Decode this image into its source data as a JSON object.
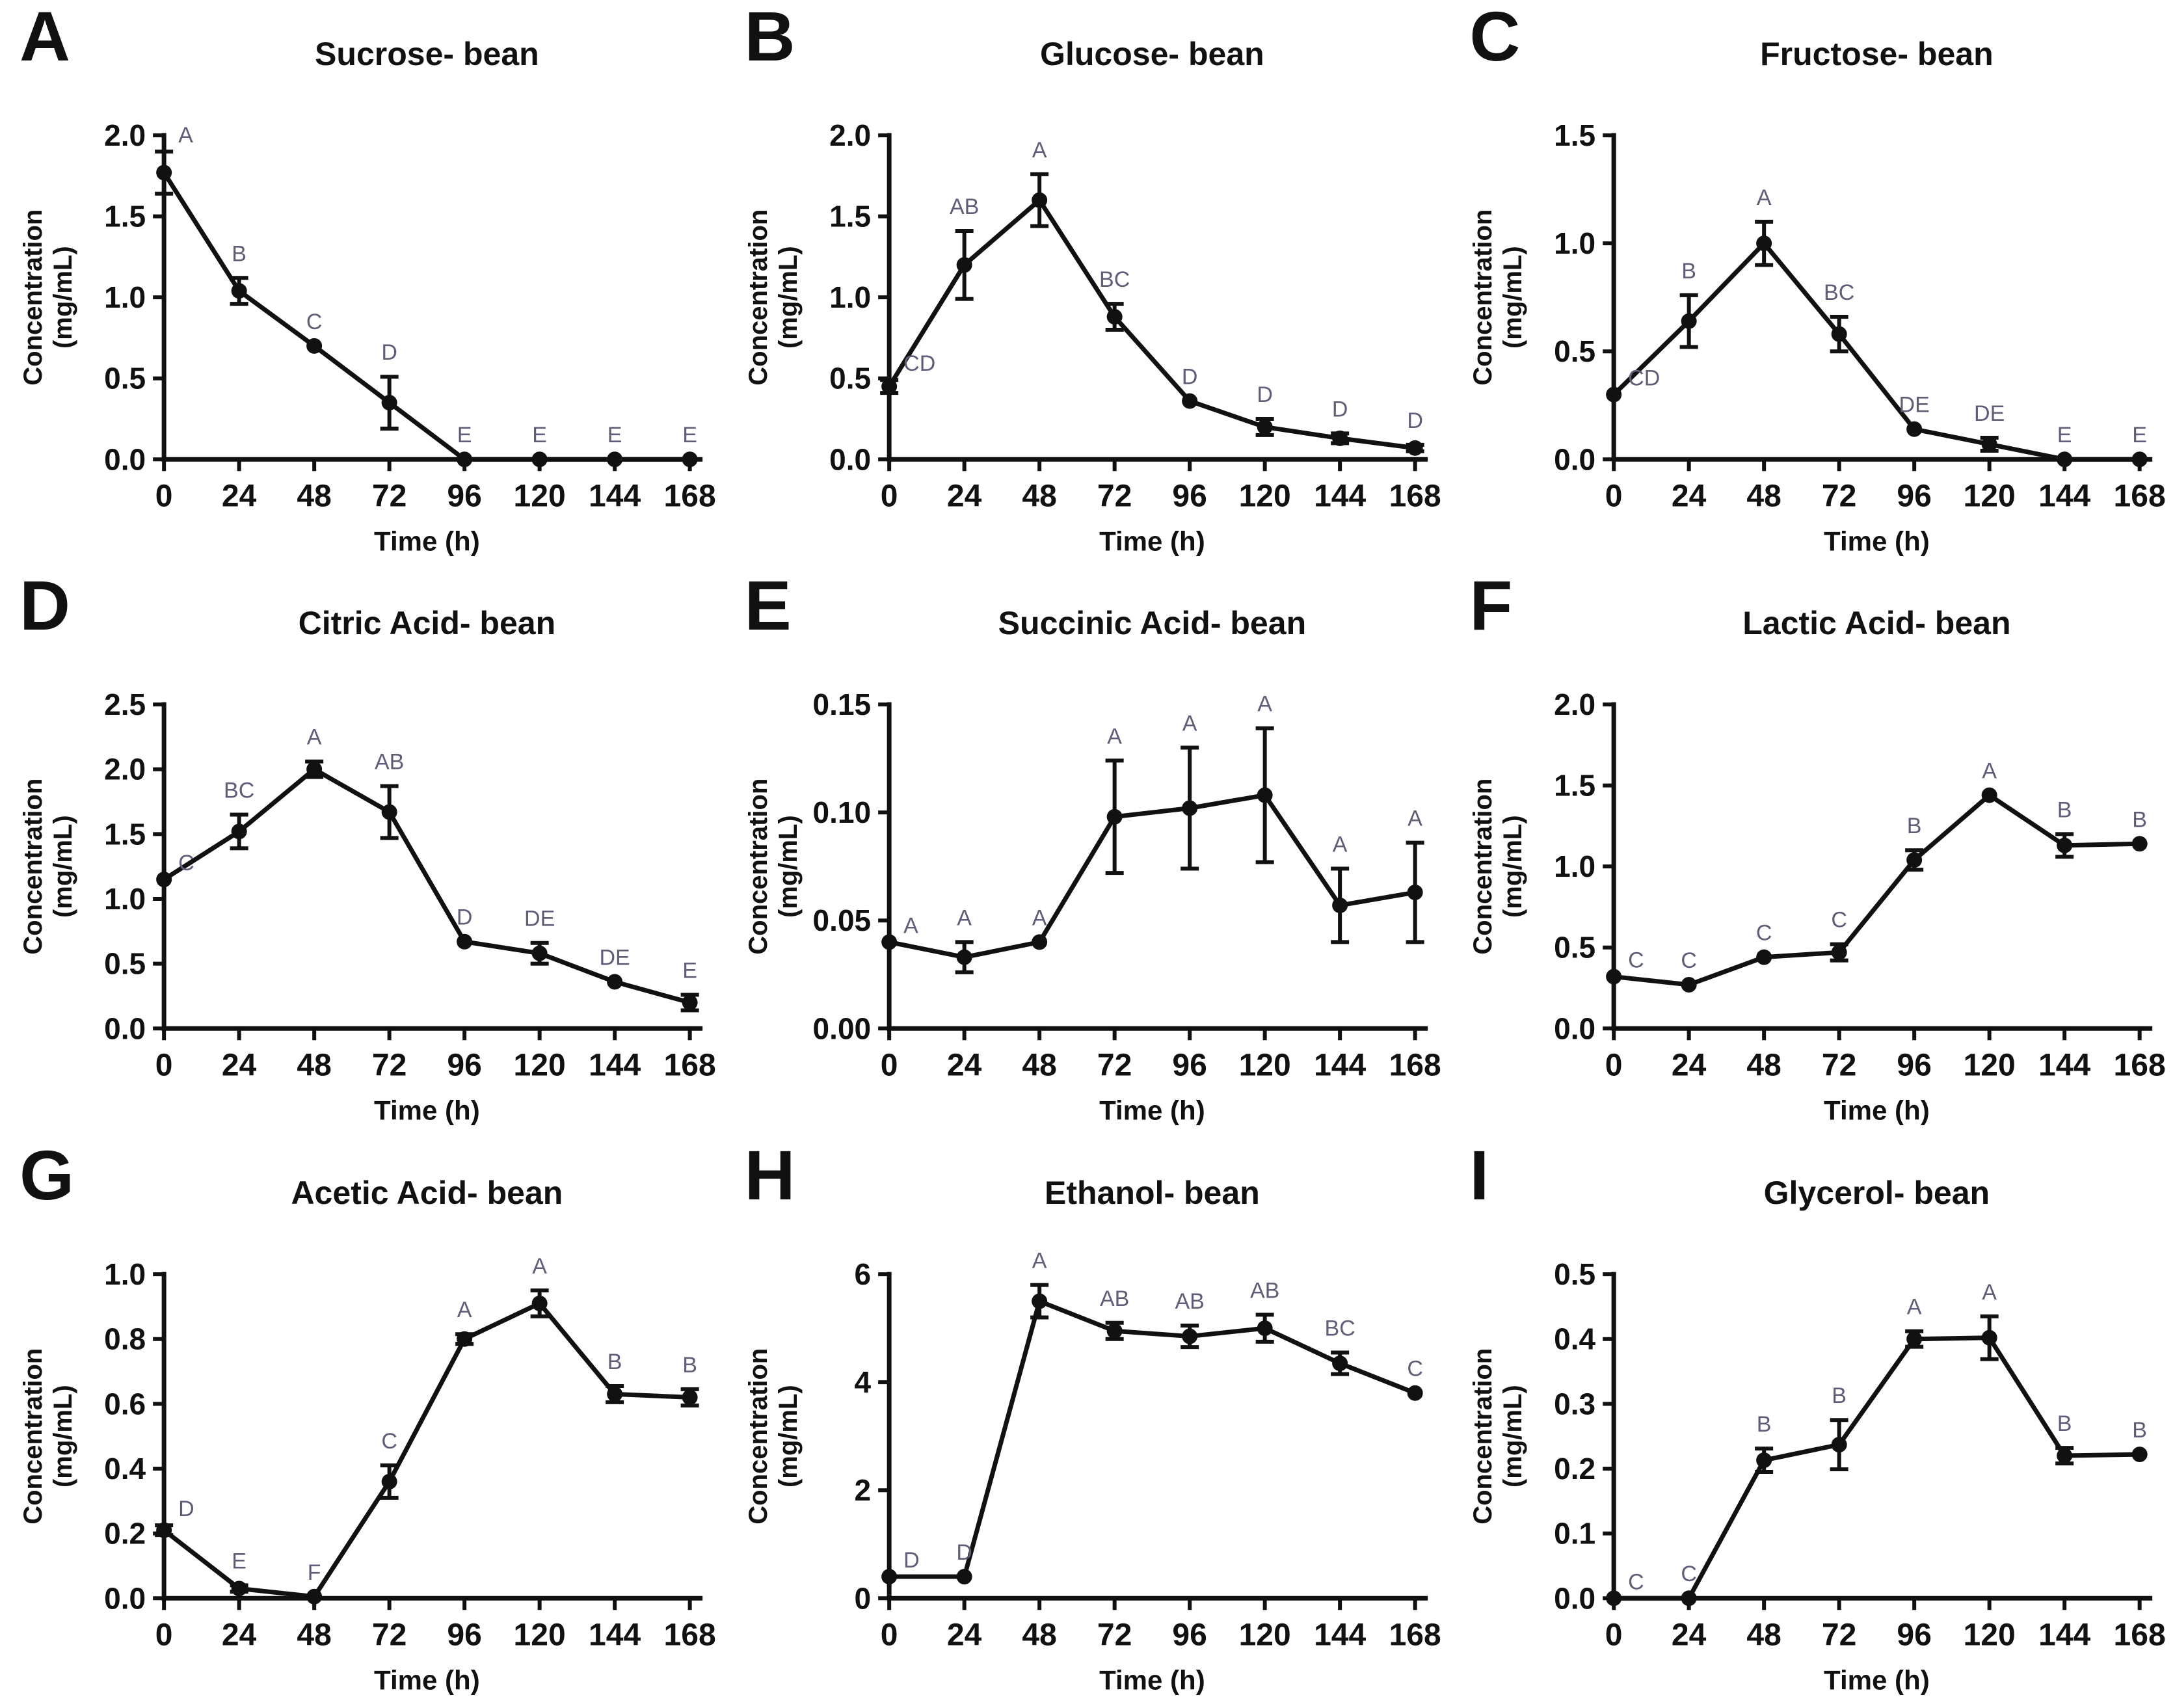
{
  "figure": {
    "background": "#ffffff",
    "ink_color": "#111111",
    "sig_letter_color": "#5e5e78",
    "xlabel": "Time (h)",
    "ylabel_line1": "Concentration",
    "ylabel_line2": "(mg/mL)",
    "x_ticks": [
      0,
      24,
      48,
      72,
      96,
      120,
      144,
      168
    ]
  },
  "chart_data": [
    {
      "type": "line",
      "panel": "A",
      "title": "Sucrose- bean",
      "xlabel": "Time (h)",
      "ylabel": "Concentration (mg/mL)",
      "x": [
        0,
        24,
        48,
        72,
        96,
        120,
        144,
        168
      ],
      "values": [
        1.77,
        1.04,
        0.7,
        0.35,
        0.0,
        0.0,
        0.0,
        0.0
      ],
      "errors": [
        0.13,
        0.08,
        0.0,
        0.16,
        0.0,
        0.0,
        0.0,
        0.0
      ],
      "sig_letters": [
        "A",
        "B",
        "C",
        "D",
        "E",
        "E",
        "E",
        "E"
      ],
      "ylim": [
        0,
        2.0
      ],
      "yticks": [
        0.0,
        0.5,
        1.0,
        1.5,
        2.0
      ],
      "ytick_decimals": 1,
      "grid": false,
      "legend": "none"
    },
    {
      "type": "line",
      "panel": "B",
      "title": "Glucose- bean",
      "xlabel": "Time (h)",
      "ylabel": "Concentration (mg/mL)",
      "x": [
        0,
        24,
        48,
        72,
        96,
        120,
        144,
        168
      ],
      "values": [
        0.45,
        1.2,
        1.6,
        0.88,
        0.36,
        0.2,
        0.13,
        0.07
      ],
      "errors": [
        0.04,
        0.21,
        0.16,
        0.08,
        0.0,
        0.05,
        0.03,
        0.02
      ],
      "sig_letters": [
        "CD",
        "AB",
        "A",
        "BC",
        "D",
        "D",
        "D",
        "D"
      ],
      "ylim": [
        0,
        2.0
      ],
      "yticks": [
        0.0,
        0.5,
        1.0,
        1.5,
        2.0
      ],
      "ytick_decimals": 1,
      "grid": false,
      "legend": "none"
    },
    {
      "type": "line",
      "panel": "C",
      "title": "Fructose- bean",
      "xlabel": "Time (h)",
      "ylabel": "Concentration (mg/mL)",
      "x": [
        0,
        24,
        48,
        72,
        96,
        120,
        144,
        168
      ],
      "values": [
        0.3,
        0.64,
        1.0,
        0.58,
        0.14,
        0.07,
        0.0,
        0.0
      ],
      "errors": [
        0.0,
        0.12,
        0.1,
        0.08,
        0.0,
        0.03,
        0.0,
        0.0
      ],
      "sig_letters": [
        "CD",
        "B",
        "A",
        "BC",
        "DE",
        "DE",
        "E",
        "E"
      ],
      "ylim": [
        0,
        1.5
      ],
      "yticks": [
        0.0,
        0.5,
        1.0,
        1.5
      ],
      "ytick_decimals": 1,
      "grid": false,
      "legend": "none"
    },
    {
      "type": "line",
      "panel": "D",
      "title": "Citric Acid- bean",
      "xlabel": "Time (h)",
      "ylabel": "Concentration (mg/mL)",
      "x": [
        0,
        24,
        48,
        72,
        96,
        120,
        144,
        168
      ],
      "values": [
        1.15,
        1.52,
        2.0,
        1.67,
        0.67,
        0.58,
        0.36,
        0.2
      ],
      "errors": [
        0.0,
        0.13,
        0.06,
        0.2,
        0.0,
        0.08,
        0.0,
        0.06
      ],
      "sig_letters": [
        "C",
        "BC",
        "A",
        "AB",
        "D",
        "DE",
        "DE",
        "E"
      ],
      "ylim": [
        0,
        2.5
      ],
      "yticks": [
        0.0,
        0.5,
        1.0,
        1.5,
        2.0,
        2.5
      ],
      "ytick_decimals": 1,
      "grid": false,
      "legend": "none"
    },
    {
      "type": "line",
      "panel": "E",
      "title": "Succinic Acid- bean",
      "xlabel": "Time (h)",
      "ylabel": "Concentration (mg/mL)",
      "x": [
        0,
        24,
        48,
        72,
        96,
        120,
        144,
        168
      ],
      "values": [
        0.04,
        0.033,
        0.04,
        0.098,
        0.102,
        0.108,
        0.057,
        0.063
      ],
      "errors": [
        0.0,
        0.007,
        0.0,
        0.026,
        0.028,
        0.031,
        0.017,
        0.023
      ],
      "sig_letters": [
        "A",
        "A",
        "A",
        "A",
        "A",
        "A",
        "A",
        "A"
      ],
      "ylim": [
        0,
        0.15
      ],
      "yticks": [
        0.0,
        0.05,
        0.1,
        0.15
      ],
      "ytick_decimals": 2,
      "grid": false,
      "legend": "none"
    },
    {
      "type": "line",
      "panel": "F",
      "title": "Lactic Acid- bean",
      "xlabel": "Time (h)",
      "ylabel": "Concentration (mg/mL)",
      "x": [
        0,
        24,
        48,
        72,
        96,
        120,
        144,
        168
      ],
      "values": [
        0.32,
        0.27,
        0.44,
        0.47,
        1.04,
        1.44,
        1.13,
        1.14
      ],
      "errors": [
        0.0,
        0.0,
        0.0,
        0.05,
        0.06,
        0.0,
        0.07,
        0.0
      ],
      "sig_letters": [
        "C",
        "C",
        "C",
        "C",
        "B",
        "A",
        "B",
        "B"
      ],
      "ylim": [
        0,
        2.0
      ],
      "yticks": [
        0.0,
        0.5,
        1.0,
        1.5,
        2.0
      ],
      "ytick_decimals": 1,
      "grid": false,
      "legend": "none"
    },
    {
      "type": "line",
      "panel": "G",
      "title": "Acetic Acid- bean",
      "xlabel": "Time (h)",
      "ylabel": "Concentration (mg/mL)",
      "x": [
        0,
        24,
        48,
        72,
        96,
        120,
        144,
        168
      ],
      "values": [
        0.21,
        0.03,
        0.005,
        0.36,
        0.8,
        0.91,
        0.63,
        0.62
      ],
      "errors": [
        0.015,
        0.01,
        0.0,
        0.05,
        0.015,
        0.04,
        0.025,
        0.025
      ],
      "sig_letters": [
        "D",
        "E",
        "F",
        "C",
        "A",
        "A",
        "B",
        "B"
      ],
      "ylim": [
        0,
        1.0
      ],
      "yticks": [
        0.0,
        0.2,
        0.4,
        0.6,
        0.8,
        1.0
      ],
      "ytick_decimals": 1,
      "grid": false,
      "legend": "none"
    },
    {
      "type": "line",
      "panel": "H",
      "title": "Ethanol- bean",
      "xlabel": "Time (h)",
      "ylabel": "Concentration (mg/mL)",
      "x": [
        0,
        24,
        48,
        72,
        96,
        120,
        144,
        168
      ],
      "values": [
        0.4,
        0.4,
        5.5,
        4.95,
        4.85,
        5.0,
        4.35,
        3.8
      ],
      "errors": [
        0.0,
        0.0,
        0.3,
        0.15,
        0.2,
        0.25,
        0.2,
        0.0
      ],
      "sig_letters": [
        "D",
        "D",
        "A",
        "AB",
        "AB",
        "AB",
        "BC",
        "C"
      ],
      "ylim": [
        0,
        6
      ],
      "yticks": [
        0,
        2,
        4,
        6
      ],
      "ytick_decimals": 0,
      "grid": false,
      "legend": "none"
    },
    {
      "type": "line",
      "panel": "I",
      "title": "Glycerol- bean",
      "xlabel": "Time (h)",
      "ylabel": "Concentration (mg/mL)",
      "x": [
        0,
        24,
        48,
        72,
        96,
        120,
        144,
        168
      ],
      "values": [
        0.0,
        0.0,
        0.213,
        0.237,
        0.4,
        0.402,
        0.22,
        0.222
      ],
      "errors": [
        0.0,
        0.0,
        0.018,
        0.038,
        0.012,
        0.033,
        0.012,
        0.0
      ],
      "sig_letters": [
        "C",
        "C",
        "B",
        "B",
        "A",
        "A",
        "B",
        "B"
      ],
      "ylim": [
        0,
        0.5
      ],
      "yticks": [
        0.0,
        0.1,
        0.2,
        0.3,
        0.4,
        0.5
      ],
      "ytick_decimals": 1,
      "grid": false,
      "legend": "none"
    }
  ]
}
